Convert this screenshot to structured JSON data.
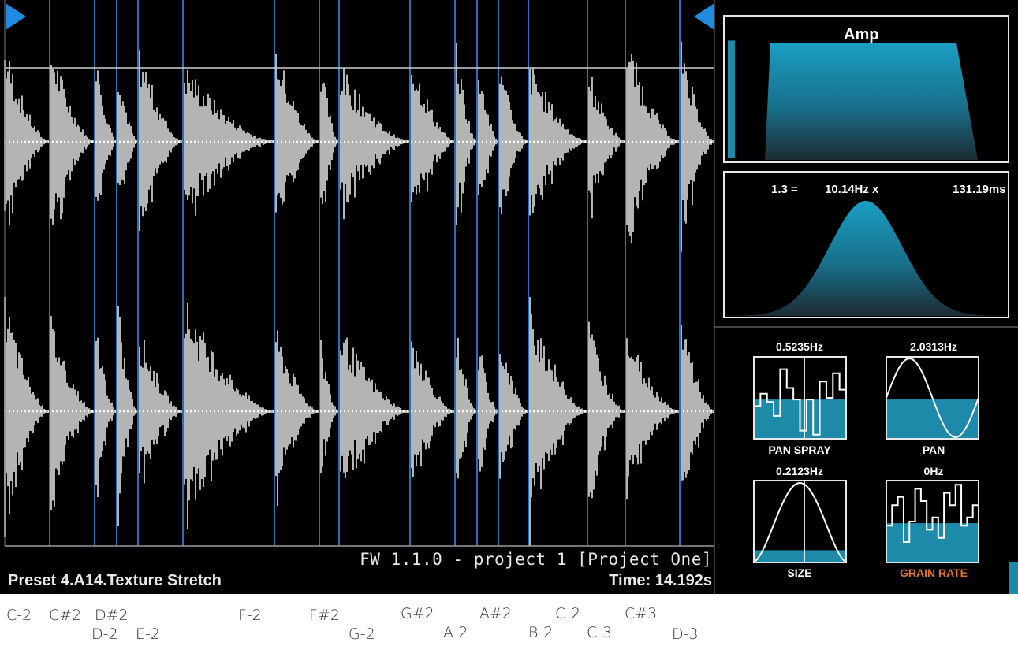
{
  "status": {
    "firmware": "FW 1.1.0 - project 1 [Project One]",
    "preset": "Preset 4.A14.Texture Stretch",
    "time": "Time: 14.192s"
  },
  "amp_panel": {
    "title": "Amp",
    "level": 0.85
  },
  "window_panel": {
    "ratio": "1.3 =",
    "frequency": "10.14Hz x",
    "duration": "131.19ms"
  },
  "lfos": [
    {
      "rate": "0.5235Hz",
      "name": "PAN SPRAY",
      "shape": "random-step",
      "name_color": "#ffffff"
    },
    {
      "rate": "2.0313Hz",
      "name": "PAN",
      "shape": "sine",
      "name_color": "#ffffff"
    },
    {
      "rate": "0.2123Hz",
      "name": "SIZE",
      "shape": "bell",
      "name_color": "#ffffff"
    },
    {
      "rate": "0Hz",
      "name": "GRAIN RATE",
      "shape": "random-step",
      "name_color": "#e0742a"
    }
  ],
  "notes": [
    "C-2",
    "C#2",
    "D#2",
    "D-2",
    "E-2",
    "F-2",
    "F#2",
    "G-2",
    "G#2",
    "A-2",
    "A#2",
    "B-2",
    "C-2",
    "C-3",
    "C#3",
    "D-3"
  ],
  "colors": {
    "background": "#000000",
    "waveform": "#b4b4b4",
    "slice_marker": "#2c6fb8",
    "accent_teal": "#1c8aa8",
    "highlight": "#e0742a"
  },
  "icons": [
    "play-start-marker-icon",
    "play-end-marker-icon"
  ]
}
